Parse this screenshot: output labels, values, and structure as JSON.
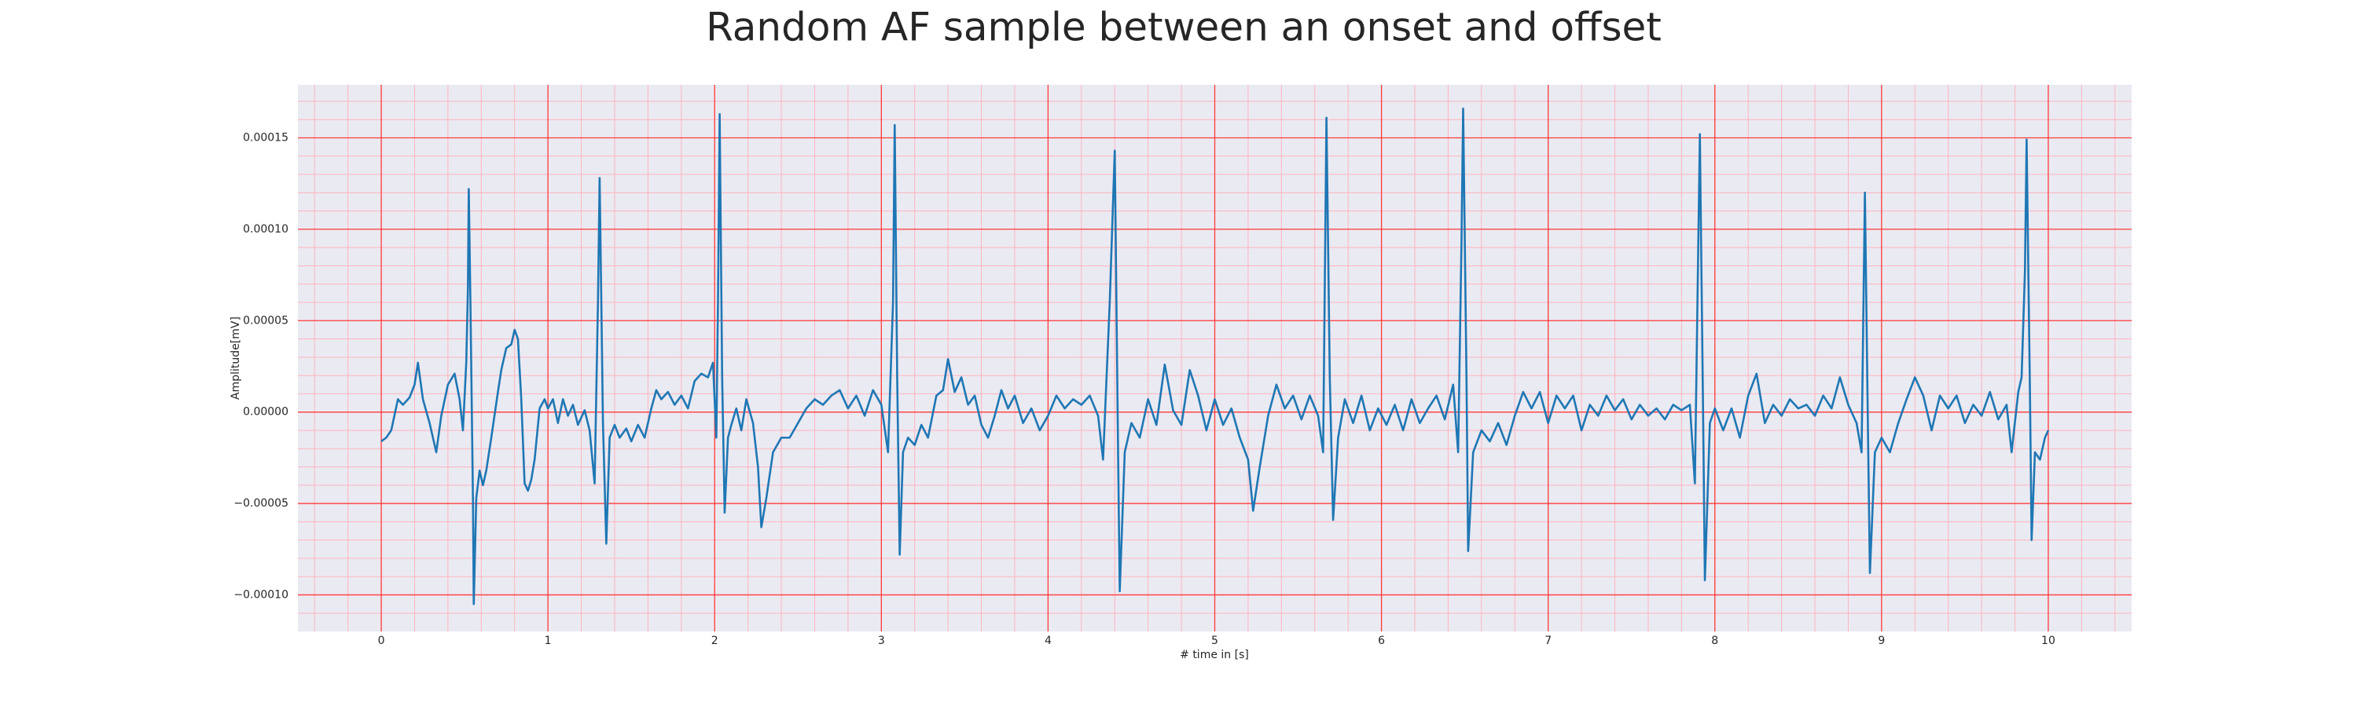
{
  "chart_data": {
    "type": "line",
    "title": "Random AF sample between an onset and offset",
    "xlabel": "# time in [s]",
    "ylabel": "Amplitude[mV]",
    "xlim": [
      -0.5,
      10.5
    ],
    "ylim": [
      -0.00012,
      0.000179
    ],
    "xticks": [
      0,
      1,
      2,
      3,
      4,
      5,
      6,
      7,
      8,
      9,
      10
    ],
    "yticks": [
      {
        "value": -0.0001,
        "label": "−0.00010"
      },
      {
        "value": -5e-05,
        "label": "−0.00005"
      },
      {
        "value": 0,
        "label": "0.00000"
      },
      {
        "value": 5e-05,
        "label": "0.00005"
      },
      {
        "value": 0.0001,
        "label": "0.00010"
      },
      {
        "value": 0.00015,
        "label": "0.00015"
      }
    ],
    "grid": true,
    "minor_grid": true,
    "series": [
      {
        "color": "#1f77b4",
        "x": [
          0,
          0.03,
          0.06,
          0.1,
          0.13,
          0.17,
          0.2,
          0.22,
          0.25,
          0.29,
          0.33,
          0.36,
          0.4,
          0.44,
          0.47,
          0.49,
          0.51,
          0.52,
          0.525,
          0.535,
          0.55,
          0.555,
          0.57,
          0.59,
          0.61,
          0.63,
          0.66,
          0.7,
          0.72,
          0.75,
          0.78,
          0.8,
          0.82,
          0.84,
          0.86,
          0.88,
          0.9,
          0.92,
          0.95,
          0.98,
          1.0,
          1.03,
          1.06,
          1.09,
          1.12,
          1.15,
          1.18,
          1.22,
          1.25,
          1.28,
          1.3,
          1.31,
          1.33,
          1.35,
          1.37,
          1.4,
          1.43,
          1.47,
          1.5,
          1.54,
          1.58,
          1.62,
          1.65,
          1.68,
          1.72,
          1.76,
          1.8,
          1.84,
          1.88,
          1.92,
          1.96,
          1.99,
          2.01,
          2.02,
          2.03,
          2.045,
          2.06,
          2.08,
          2.1,
          2.13,
          2.16,
          2.19,
          2.23,
          2.26,
          2.28,
          2.31,
          2.35,
          2.4,
          2.45,
          2.5,
          2.55,
          2.6,
          2.65,
          2.7,
          2.75,
          2.8,
          2.85,
          2.9,
          2.95,
          3.0,
          3.04,
          3.07,
          3.08,
          3.095,
          3.11,
          3.13,
          3.16,
          3.2,
          3.24,
          3.28,
          3.33,
          3.37,
          3.4,
          3.44,
          3.48,
          3.52,
          3.56,
          3.6,
          3.64,
          3.68,
          3.72,
          3.76,
          3.8,
          3.85,
          3.9,
          3.95,
          4.0,
          4.05,
          4.1,
          4.15,
          4.2,
          4.25,
          4.3,
          4.33,
          4.37,
          4.4,
          4.42,
          4.43,
          4.46,
          4.5,
          4.55,
          4.6,
          4.65,
          4.7,
          4.75,
          4.8,
          4.85,
          4.9,
          4.95,
          5.0,
          5.05,
          5.1,
          5.15,
          5.2,
          5.23,
          5.27,
          5.32,
          5.37,
          5.42,
          5.47,
          5.52,
          5.57,
          5.62,
          5.65,
          5.67,
          5.69,
          5.71,
          5.74,
          5.78,
          5.83,
          5.88,
          5.93,
          5.98,
          6.03,
          6.08,
          6.13,
          6.18,
          6.23,
          6.28,
          6.33,
          6.38,
          6.43,
          6.46,
          6.48,
          6.49,
          6.51,
          6.52,
          6.55,
          6.6,
          6.65,
          6.7,
          6.75,
          6.8,
          6.85,
          6.9,
          6.95,
          7.0,
          7.05,
          7.1,
          7.15,
          7.2,
          7.25,
          7.3,
          7.35,
          7.4,
          7.45,
          7.5,
          7.55,
          7.6,
          7.65,
          7.7,
          7.75,
          7.8,
          7.85,
          7.88,
          7.91,
          7.93,
          7.94,
          7.97,
          8.0,
          8.05,
          8.1,
          8.15,
          8.2,
          8.25,
          8.3,
          8.35,
          8.4,
          8.45,
          8.5,
          8.55,
          8.6,
          8.65,
          8.7,
          8.75,
          8.8,
          8.85,
          8.88,
          8.9,
          8.92,
          8.93,
          8.96,
          9.0,
          9.05,
          9.1,
          9.15,
          9.2,
          9.25,
          9.3,
          9.35,
          9.4,
          9.45,
          9.5,
          9.55,
          9.6,
          9.65,
          9.7,
          9.75,
          9.78,
          9.82,
          9.84,
          9.86,
          9.87,
          9.89,
          9.9,
          9.92,
          9.95,
          9.98,
          10.0
        ],
        "values": [
          -1.6e-05,
          -1.4e-05,
          -1e-05,
          7e-06,
          4e-06,
          8e-06,
          1.5e-05,
          2.7e-05,
          7e-06,
          -6e-06,
          -2.2e-05,
          -2e-06,
          1.5e-05,
          2.1e-05,
          7e-06,
          -1e-05,
          2.7e-05,
          6.8e-05,
          0.000122,
          6e-05,
          -4.7e-05,
          -0.000105,
          -4.7e-05,
          -3.2e-05,
          -4e-05,
          -3.2e-05,
          -1.4e-05,
          1.1e-05,
          2.3e-05,
          3.5e-05,
          3.7e-05,
          4.5e-05,
          4e-05,
          7e-06,
          -3.9e-05,
          -4.3e-05,
          -3.7e-05,
          -2.6e-05,
          2e-06,
          7e-06,
          2e-06,
          7e-06,
          -6e-06,
          7e-06,
          -2e-06,
          4e-06,
          -7e-06,
          1e-06,
          -1e-05,
          -3.9e-05,
          6e-05,
          0.000128,
          -6e-06,
          -7.2e-05,
          -1.4e-05,
          -7e-06,
          -1.4e-05,
          -9e-06,
          -1.6e-05,
          -7e-06,
          -1.4e-05,
          2e-06,
          1.2e-05,
          7e-06,
          1.1e-05,
          4e-06,
          9e-06,
          2e-06,
          1.7e-05,
          2.1e-05,
          1.9e-05,
          2.7e-05,
          -1.4e-05,
          6e-05,
          0.000163,
          1.9e-05,
          -5.5e-05,
          -1.4e-05,
          -7e-06,
          2e-06,
          -1e-05,
          7e-06,
          -6e-06,
          -3e-05,
          -6.3e-05,
          -4.7e-05,
          -2.2e-05,
          -1.4e-05,
          -1.4e-05,
          -6e-06,
          2e-06,
          7e-06,
          4e-06,
          9e-06,
          1.2e-05,
          2e-06,
          9e-06,
          -2e-06,
          1.2e-05,
          4e-06,
          -2.2e-05,
          6e-05,
          0.000157,
          1.9e-05,
          -7.8e-05,
          -2.2e-05,
          -1.4e-05,
          -1.8e-05,
          -7e-06,
          -1.4e-05,
          9e-06,
          1.2e-05,
          2.9e-05,
          1.1e-05,
          1.9e-05,
          4e-06,
          9e-06,
          -7e-06,
          -1.4e-05,
          -2e-06,
          1.2e-05,
          2e-06,
          9e-06,
          -6e-06,
          2e-06,
          -1e-05,
          -2e-06,
          9e-06,
          2e-06,
          7e-06,
          4e-06,
          9e-06,
          -2e-06,
          -2.6e-05,
          6e-05,
          0.000143,
          -2.2e-05,
          -9.8e-05,
          -2.2e-05,
          -6e-06,
          -1.4e-05,
          7e-06,
          -7e-06,
          2.6e-05,
          1e-06,
          -7e-06,
          2.3e-05,
          9e-06,
          -1e-05,
          7e-06,
          -7e-06,
          2e-06,
          -1.4e-05,
          -2.6e-05,
          -5.4e-05,
          -3e-05,
          -2e-06,
          1.5e-05,
          2e-06,
          9e-06,
          -4e-06,
          9e-06,
          -2e-06,
          -2.2e-05,
          0.000161,
          1.9e-05,
          -5.9e-05,
          -1.4e-05,
          7e-06,
          -6e-06,
          9e-06,
          -1e-05,
          2e-06,
          -7e-06,
          4e-06,
          -1e-05,
          7e-06,
          -6e-06,
          2e-06,
          9e-06,
          -4e-06,
          1.5e-05,
          -2.2e-05,
          9.3e-05,
          0.000166,
          1.9e-05,
          -7.6e-05,
          -2.2e-05,
          -1e-05,
          -1.6e-05,
          -6e-06,
          -1.8e-05,
          -2e-06,
          1.1e-05,
          2e-06,
          1.1e-05,
          -6e-06,
          9e-06,
          2e-06,
          9e-06,
          -1e-05,
          4e-06,
          -2e-06,
          9e-06,
          1e-06,
          7e-06,
          -4e-06,
          4e-06,
          -2e-06,
          2e-06,
          -4e-06,
          4e-06,
          1e-06,
          4e-06,
          -3.9e-05,
          0.000152,
          -6e-06,
          -9.2e-05,
          -6e-06,
          2e-06,
          -1e-05,
          2e-06,
          -1.4e-05,
          9e-06,
          2.1e-05,
          -6e-06,
          4e-06,
          -2e-06,
          7e-06,
          2e-06,
          4e-06,
          -2e-06,
          9e-06,
          2e-06,
          1.9e-05,
          4e-06,
          -6e-06,
          -2.2e-05,
          0.00012,
          -2.2e-05,
          -8.8e-05,
          -2.2e-05,
          -1.4e-05,
          -2.2e-05,
          -6e-06,
          7e-06,
          1.9e-05,
          9e-06,
          -1e-05,
          9e-06,
          2e-06,
          9e-06,
          -6e-06,
          4e-06,
          -2e-06,
          1.1e-05,
          -4e-06,
          4e-06,
          -2.2e-05,
          1.1e-05,
          1.9e-05,
          7.7e-05,
          0.000149,
          1.1e-05,
          -7e-05,
          -2.2e-05,
          -2.6e-05,
          -1.4e-05,
          -1e-05
        ]
      }
    ]
  }
}
